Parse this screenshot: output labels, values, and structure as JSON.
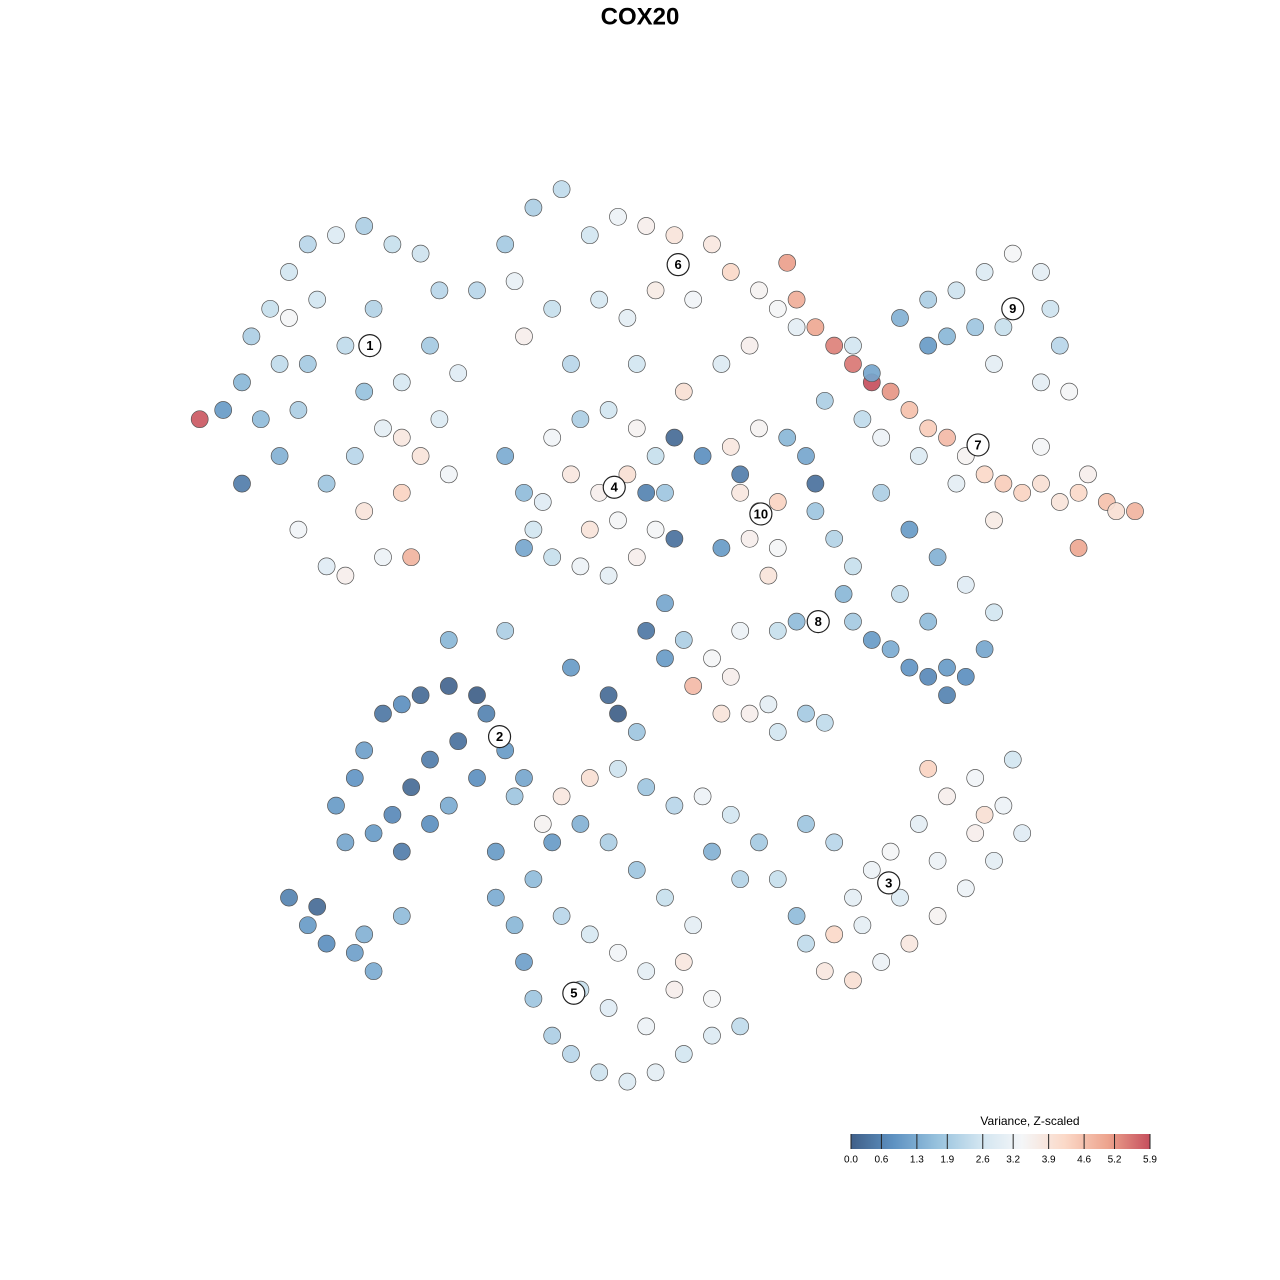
{
  "chart_data": {
    "type": "scatter",
    "title": "COX20",
    "xlim": [
      0,
      100
    ],
    "ylim": [
      0,
      100
    ],
    "colorbar": {
      "title": "Variance, Z-scaled",
      "clim": [
        0,
        5.9
      ],
      "colors": [
        "#3f5f88",
        "#5e92c2",
        "#96c1dd",
        "#d0e4f0",
        "#f4f6f8",
        "#fbd9c8",
        "#eda48e",
        "#c64f5d"
      ],
      "ticks": [
        {
          "value": 0,
          "label": "0.0"
        },
        0.6,
        1.3,
        1.9,
        2.6,
        3.2,
        3.9,
        4.6,
        5.2,
        5.9
      ]
    },
    "clusters": [
      {
        "label": "1",
        "x": 18.6,
        "y": 82,
        "points": {
          "x": [
            3,
            5,
            6,
            8,
            10,
            12,
            15,
            18,
            21,
            24,
            26,
            25,
            22,
            20,
            17,
            14,
            11,
            14,
            16,
            20,
            23,
            22,
            9,
            7,
            12,
            16,
            19,
            13,
            9,
            0.5,
            5,
            24,
            26,
            28,
            11,
            18,
            27,
            22,
            18,
            10
          ],
          "y": [
            75,
            78,
            83,
            86,
            90,
            93,
            94,
            95,
            93,
            92,
            88,
            82,
            78,
            73,
            70,
            67,
            62,
            58,
            57,
            59,
            59,
            72,
            70,
            74,
            80,
            82,
            86,
            87,
            80,
            74,
            67,
            70,
            74,
            79,
            75,
            77,
            68,
            66,
            64,
            85
          ],
          "values": [
            1.0,
            1.5,
            2.0,
            2.4,
            2.6,
            2.2,
            2.8,
            2.0,
            2.4,
            2.5,
            2.2,
            1.9,
            2.7,
            3.0,
            2.2,
            1.8,
            3.3,
            2.9,
            3.6,
            3.2,
            4.8,
            3.8,
            1.4,
            1.6,
            1.9,
            2.3,
            2.1,
            2.6,
            2.3,
            5.8,
            0.5,
            3.9,
            2.8,
            2.9,
            2.0,
            1.7,
            3.3,
            4.3,
            3.9,
            3.4
          ]
        }
      },
      {
        "label": "2",
        "x": 32.4,
        "y": 39.5,
        "points": {
          "x": [
            15,
            17,
            18,
            20,
            22,
            24,
            27,
            30,
            31,
            28,
            25,
            23,
            21,
            19,
            16,
            22,
            25,
            27,
            33,
            35,
            30,
            10,
            12,
            14,
            17,
            18,
            19,
            22,
            13
          ],
          "y": [
            32,
            35,
            38,
            42,
            43,
            44,
            45,
            44,
            42,
            39,
            37,
            34,
            31,
            29,
            28,
            27,
            30,
            32,
            38,
            35,
            35,
            22,
            19,
            17,
            16,
            18,
            14,
            20,
            21
          ],
          "values": [
            1.0,
            0.9,
            1.1,
            0.4,
            0.8,
            0.2,
            0.1,
            0.0,
            0.6,
            0.3,
            0.5,
            0.2,
            0.7,
            1.0,
            1.2,
            0.5,
            0.8,
            1.3,
            1.0,
            1.2,
            0.8,
            0.6,
            1.0,
            0.8,
            1.1,
            1.4,
            1.3,
            1.6,
            0.2
          ]
        }
      },
      {
        "label": "3",
        "x": 73.8,
        "y": 23.6,
        "points": {
          "x": [
            62,
            64,
            65,
            67,
            68,
            70,
            72,
            74,
            77,
            80,
            83,
            86,
            88,
            85,
            82,
            79,
            76,
            73,
            70,
            71,
            75,
            79,
            83,
            78,
            68,
            65,
            87,
            84
          ],
          "y": [
            24,
            20,
            17,
            14,
            18,
            22,
            25,
            27,
            30,
            33,
            35,
            32,
            29,
            26,
            23,
            20,
            17,
            15,
            13,
            19,
            22,
            26,
            29,
            36,
            28,
            30,
            37,
            31
          ],
          "values": [
            2.4,
            1.6,
            2.3,
            3.8,
            4.2,
            3.0,
            3.2,
            3.4,
            3.0,
            3.6,
            3.3,
            3.2,
            2.9,
            3.0,
            3.2,
            3.5,
            3.8,
            3.2,
            4.0,
            3.0,
            2.8,
            3.2,
            3.6,
            4.3,
            2.2,
            1.8,
            2.6,
            4.0
          ]
        }
      },
      {
        "label": "4",
        "x": 44.6,
        "y": 66.6,
        "points": {
          "x": [
            33,
            35,
            36,
            38,
            41,
            44,
            47,
            49,
            50,
            49,
            47,
            44,
            41,
            38,
            40,
            43,
            45,
            42,
            37,
            46,
            51,
            48,
            35
          ],
          "y": [
            70,
            66,
            62,
            59,
            58,
            57,
            59,
            62,
            66,
            70,
            73,
            75,
            74,
            72,
            68,
            66,
            63,
            62,
            65,
            68,
            61,
            66,
            60
          ],
          "values": [
            1.3,
            1.6,
            2.6,
            2.4,
            3.2,
            3.0,
            3.6,
            3.4,
            1.8,
            2.4,
            3.5,
            2.6,
            2.0,
            3.3,
            3.8,
            3.6,
            3.4,
            3.9,
            2.9,
            4.0,
            0.3,
            0.6,
            1.2
          ]
        }
      },
      {
        "label": "5",
        "x": 40.3,
        "y": 11.6,
        "points": {
          "x": [
            32,
            34,
            35,
            36,
            38,
            40,
            43,
            46,
            49,
            52,
            55,
            58,
            55,
            51,
            48,
            45,
            42,
            39,
            36,
            38,
            41,
            44,
            47,
            50,
            53,
            52,
            44,
            41,
            37,
            39,
            42,
            45,
            48,
            51,
            54,
            57,
            60,
            58,
            55,
            48,
            32,
            34
          ],
          "y": [
            22,
            19,
            15,
            11,
            7,
            5,
            3,
            2,
            3,
            5,
            7,
            8,
            11,
            12,
            14,
            16,
            18,
            20,
            24,
            28,
            30,
            28,
            25,
            22,
            19,
            15,
            10,
            12,
            30,
            33,
            35,
            36,
            34,
            32,
            33,
            31,
            28,
            24,
            27,
            8,
            27,
            33
          ],
          "values": [
            1.3,
            1.5,
            1.1,
            1.8,
            2.0,
            2.2,
            2.5,
            2.8,
            3.0,
            2.6,
            2.8,
            2.3,
            3.4,
            3.6,
            3.0,
            3.3,
            2.7,
            2.2,
            1.6,
            1.0,
            1.4,
            2.0,
            1.8,
            2.4,
            3.0,
            3.8,
            2.9,
            2.4,
            3.5,
            3.8,
            4.0,
            2.5,
            1.8,
            2.2,
            3.2,
            2.6,
            1.9,
            2.1,
            1.4,
            3.2,
            1.0,
            1.8
          ]
        }
      },
      {
        "label": "6",
        "x": 51.4,
        "y": 90.8,
        "points": {
          "x": [
            30,
            33,
            36,
            39,
            42,
            45,
            48,
            51,
            55,
            57,
            60,
            62,
            64,
            53,
            49,
            46,
            43,
            38,
            35,
            40,
            47,
            52,
            56,
            59,
            34,
            63
          ],
          "y": [
            88,
            93,
            97,
            99,
            94,
            96,
            95,
            94,
            93,
            90,
            88,
            86,
            84,
            87,
            88,
            85,
            87,
            86,
            83,
            80,
            80,
            77,
            80,
            82,
            89,
            91
          ],
          "values": [
            2.2,
            1.9,
            2.0,
            2.3,
            2.6,
            3.2,
            3.6,
            3.9,
            3.8,
            4.2,
            3.5,
            3.4,
            3.0,
            3.3,
            3.7,
            3.0,
            2.7,
            2.4,
            3.6,
            2.2,
            2.6,
            4.0,
            2.8,
            3.6,
            3.1,
            5.1
          ]
        }
      },
      {
        "label": "7",
        "x": 83.3,
        "y": 71.2,
        "points": {
          "x": [
            64,
            66,
            68,
            70,
            72,
            74,
            76,
            78,
            80,
            82,
            84,
            86,
            88,
            90,
            92,
            94,
            97,
            98,
            100,
            90,
            95,
            73,
            77,
            81,
            71,
            67,
            85,
            94
          ],
          "y": [
            87,
            84,
            82,
            80,
            78,
            77,
            75,
            73,
            72,
            70,
            68,
            67,
            66,
            67,
            65,
            66,
            65,
            64,
            64,
            71,
            68,
            72,
            70,
            67,
            74,
            76,
            63,
            60
          ],
          "values": [
            4.9,
            5.0,
            5.4,
            5.5,
            5.9,
            5.2,
            4.6,
            4.4,
            4.7,
            3.5,
            4.2,
            4.4,
            4.3,
            4.0,
            3.9,
            4.2,
            4.6,
            4.0,
            4.8,
            3.4,
            3.6,
            3.2,
            2.8,
            3.0,
            2.3,
            2.0,
            3.7,
            5.0
          ]
        }
      },
      {
        "label": "8",
        "x": 66.3,
        "y": 52,
        "points": {
          "x": [
            66,
            68,
            70,
            69,
            70,
            72,
            74,
            76,
            78,
            80,
            82,
            80,
            84,
            78,
            75,
            82,
            79,
            76,
            73,
            85,
            64,
            62,
            58,
            48,
            50,
            52,
            55,
            57,
            53,
            56,
            59,
            61,
            62,
            65,
            67,
            44,
            45,
            47,
            50,
            27,
            33,
            40
          ],
          "y": [
            64,
            61,
            58,
            55,
            52,
            50,
            49,
            47,
            46,
            47,
            46,
            44,
            49,
            52,
            55,
            56,
            59,
            62,
            66,
            53,
            52,
            51,
            51,
            51,
            48,
            50,
            48,
            46,
            45,
            42,
            42,
            43,
            40,
            42,
            41,
            44,
            42,
            40,
            54,
            50,
            51,
            47
          ],
          "values": [
            1.8,
            2.1,
            2.4,
            1.5,
            1.9,
            1.0,
            1.3,
            0.9,
            0.7,
            1.0,
            0.8,
            0.6,
            1.2,
            1.6,
            2.3,
            2.9,
            1.4,
            1.0,
            2.0,
            2.6,
            1.6,
            2.4,
            3.2,
            0.4,
            1.0,
            2.0,
            3.4,
            3.6,
            4.7,
            3.9,
            3.6,
            3.0,
            2.6,
            1.9,
            2.3,
            0.2,
            0.0,
            1.8,
            1.2,
            1.5,
            2.0,
            1.0
          ]
        }
      },
      {
        "label": "9",
        "x": 87,
        "y": 86,
        "points": {
          "x": [
            72,
            75,
            78,
            81,
            84,
            87,
            90,
            91,
            92,
            90,
            86,
            83,
            80,
            78,
            85,
            93,
            70
          ],
          "y": [
            79,
            85,
            87,
            88,
            90,
            92,
            90,
            86,
            82,
            78,
            84,
            84,
            83,
            82,
            80,
            77,
            82
          ],
          "values": [
            1.2,
            1.4,
            2.0,
            2.5,
            2.8,
            3.4,
            3.0,
            2.5,
            2.2,
            3.0,
            2.4,
            1.8,
            1.5,
            1.0,
            3.0,
            3.4,
            2.6
          ]
        }
      },
      {
        "label": "10",
        "x": 60.2,
        "y": 63.7,
        "points": {
          "x": [
            51,
            54,
            57,
            60,
            63,
            65,
            58,
            66,
            58,
            60,
            62,
            59,
            62,
            61,
            56
          ],
          "y": [
            72,
            70,
            71,
            73,
            72,
            70,
            68,
            67,
            66,
            64,
            65,
            61,
            60,
            57,
            60
          ],
          "values": [
            0.2,
            0.8,
            3.8,
            3.5,
            1.5,
            1.2,
            0.5,
            0.3,
            3.8,
            4.0,
            4.3,
            3.6,
            3.4,
            3.9,
            1.0
          ]
        }
      }
    ]
  }
}
